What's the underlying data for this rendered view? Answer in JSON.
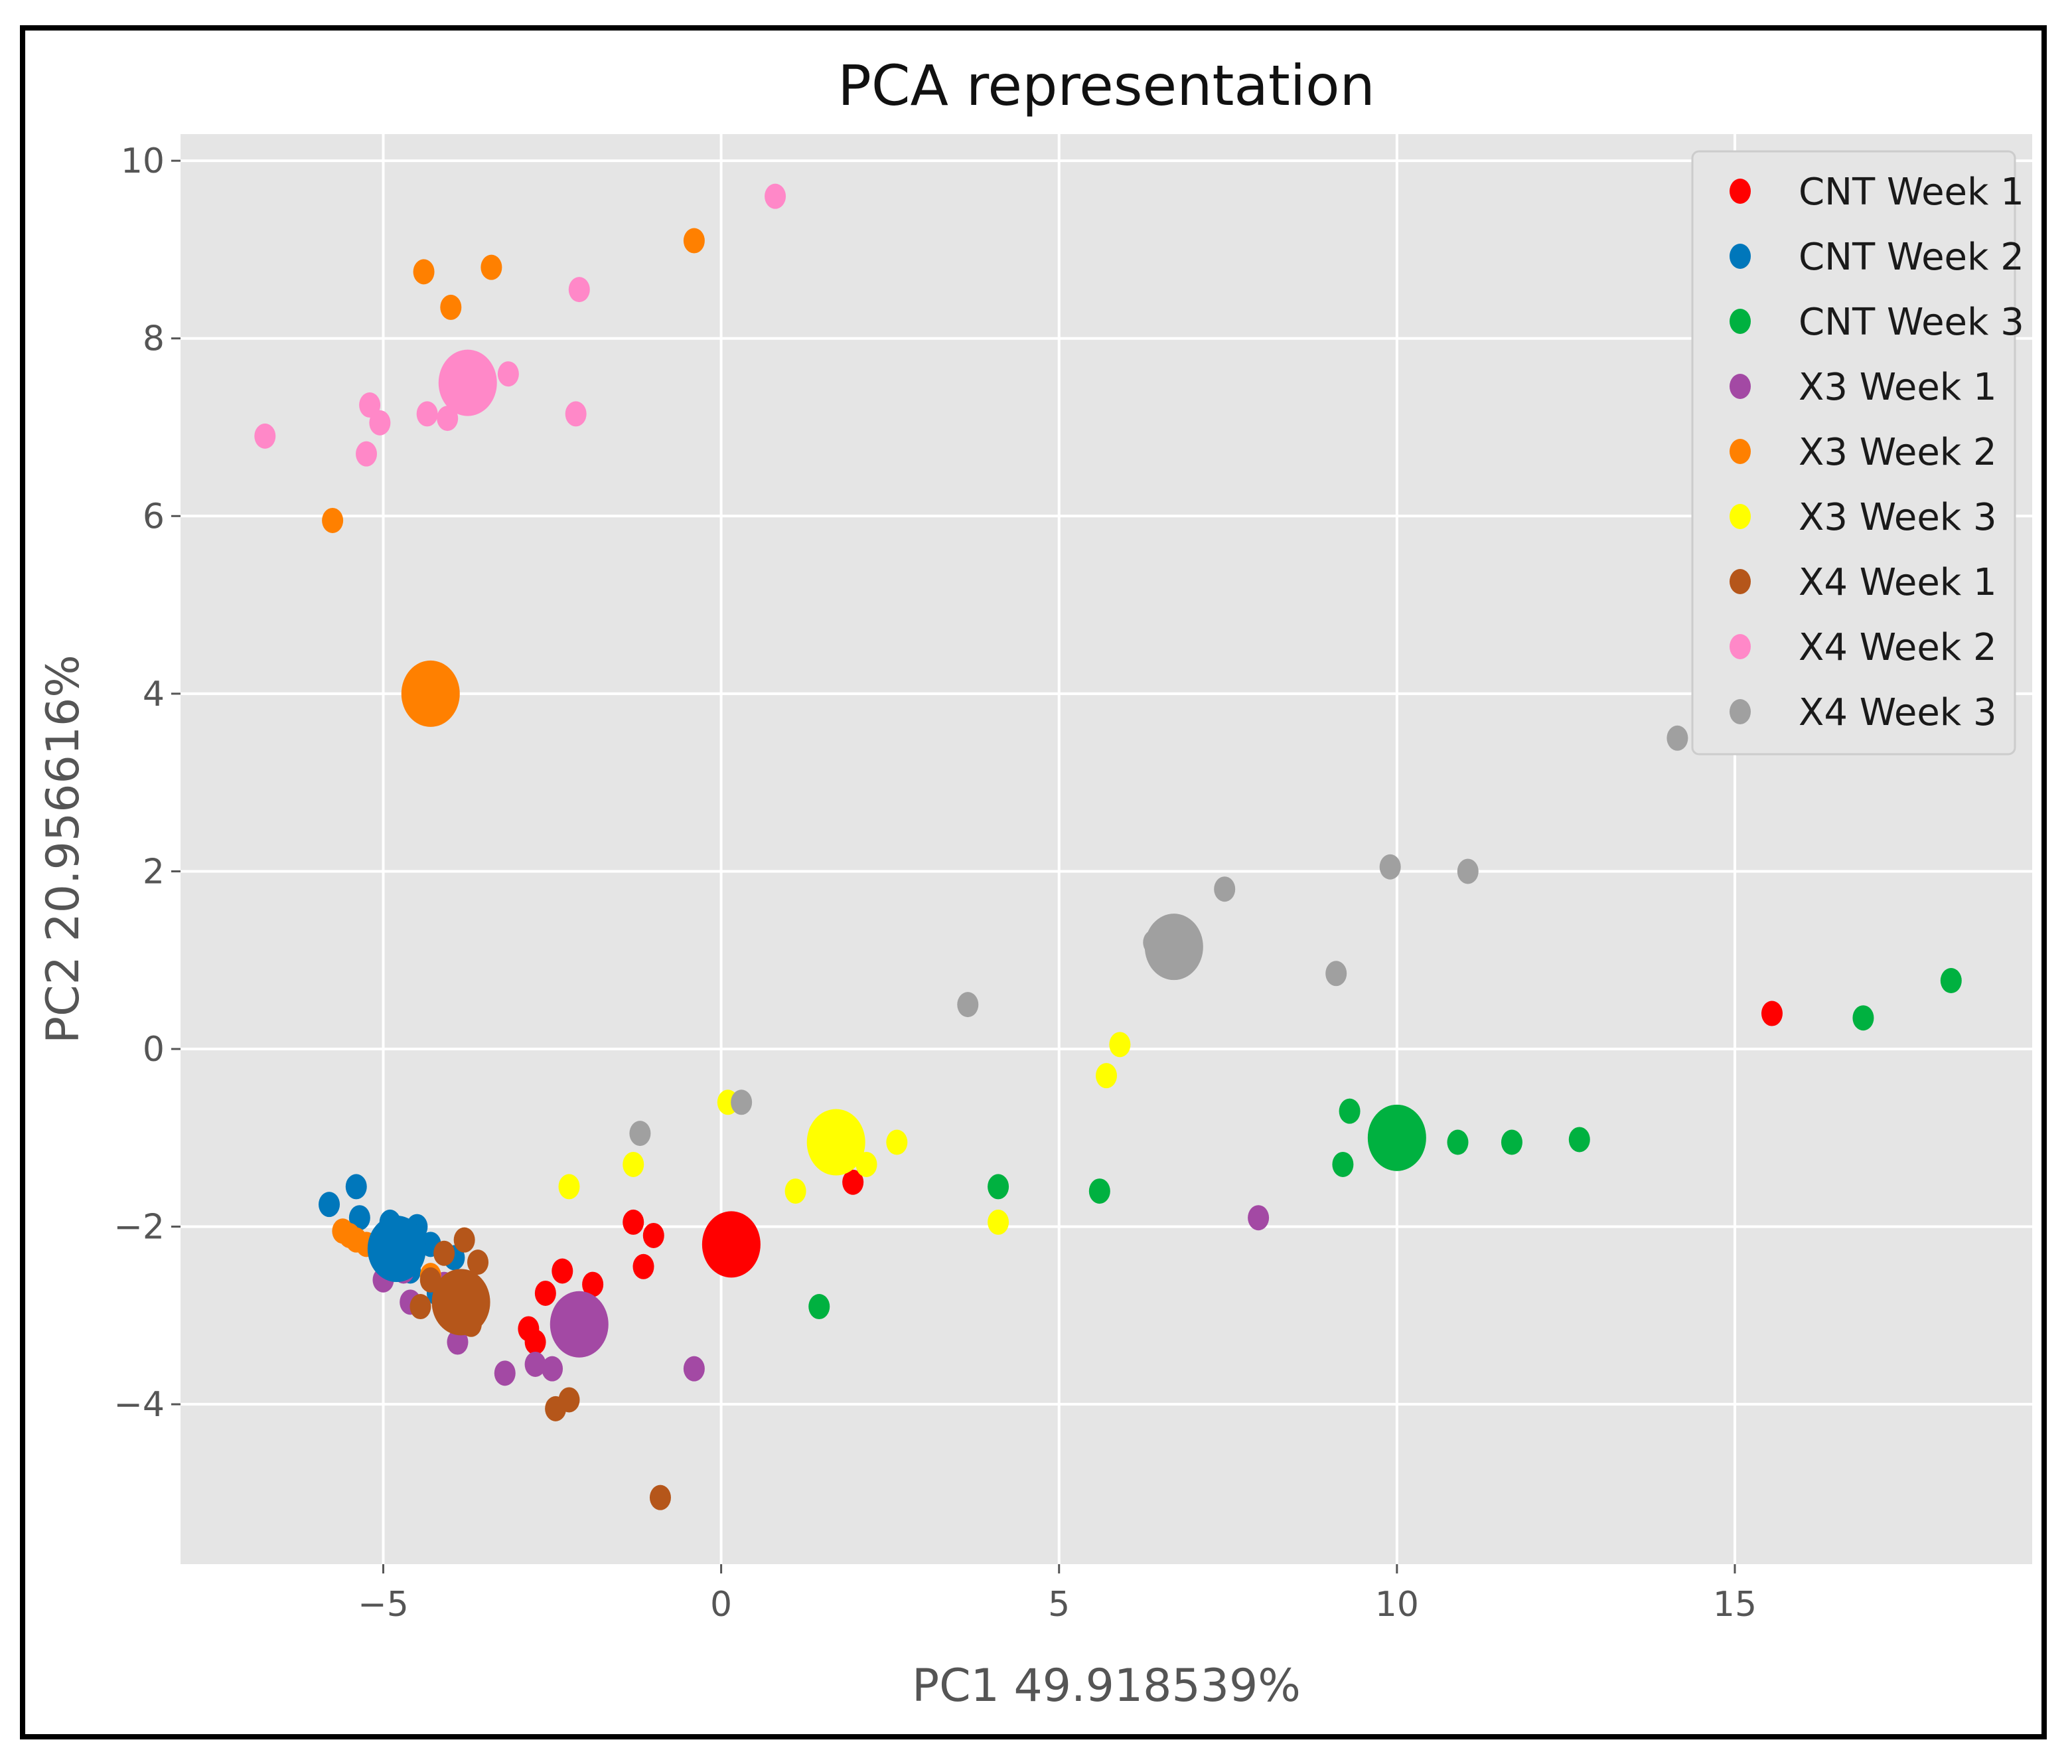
{
  "chart_data": {
    "type": "scatter",
    "title": "PCA representation",
    "xlabel": "PC1 49.918539%",
    "ylabel": "PC2 20.956616%",
    "xlim": [
      -8,
      19.4
    ],
    "ylim": [
      -5.8,
      10.3
    ],
    "xticks": [
      -5,
      0,
      5,
      10,
      15
    ],
    "yticks": [
      -4,
      -2,
      0,
      2,
      4,
      6,
      8,
      10
    ],
    "xtick_labels": [
      "−5",
      "0",
      "5",
      "10",
      "15"
    ],
    "ytick_labels": [
      "−4",
      "−2",
      "0",
      "2",
      "4",
      "6",
      "8",
      "10"
    ],
    "legend_position": "top-right",
    "series": [
      {
        "name": "CNT Week 1",
        "color": "#ff0000",
        "points": [
          [
            -1.3,
            -1.95
          ],
          [
            -1.0,
            -2.1
          ],
          [
            -1.15,
            -2.45
          ],
          [
            -2.35,
            -2.5
          ],
          [
            -2.6,
            -2.75
          ],
          [
            -1.9,
            -2.65
          ],
          [
            -2.85,
            -3.15
          ],
          [
            -2.75,
            -3.3
          ],
          [
            1.95,
            -1.5
          ],
          [
            15.55,
            0.4
          ]
        ],
        "centroid": [
          0.15,
          -2.2
        ]
      },
      {
        "name": "CNT Week 2",
        "color": "#0077bb",
        "points": [
          [
            -5.8,
            -1.75
          ],
          [
            -5.4,
            -1.55
          ],
          [
            -5.35,
            -1.9
          ],
          [
            -4.9,
            -1.95
          ],
          [
            -4.5,
            -2.0
          ],
          [
            -4.3,
            -2.2
          ],
          [
            -4.6,
            -2.5
          ],
          [
            -4.2,
            -2.75
          ],
          [
            -3.95,
            -2.35
          ],
          [
            -4.95,
            -2.35
          ]
        ],
        "centroid": [
          -4.8,
          -2.25
        ]
      },
      {
        "name": "CNT Week 3",
        "color": "#00b140",
        "points": [
          [
            4.1,
            -1.55
          ],
          [
            5.6,
            -1.6
          ],
          [
            1.45,
            -2.9
          ],
          [
            9.3,
            -0.7
          ],
          [
            9.2,
            -1.3
          ],
          [
            10.9,
            -1.05
          ],
          [
            11.7,
            -1.05
          ],
          [
            12.7,
            -1.02
          ],
          [
            16.9,
            0.35
          ],
          [
            18.2,
            0.77
          ]
        ],
        "centroid": [
          10.0,
          -1.0
        ]
      },
      {
        "name": "X3 Week 1",
        "color": "#a349a4",
        "points": [
          [
            -5.0,
            -2.6
          ],
          [
            -4.6,
            -2.85
          ],
          [
            -3.9,
            -3.3
          ],
          [
            -3.2,
            -3.65
          ],
          [
            -2.75,
            -3.55
          ],
          [
            -2.5,
            -3.6
          ],
          [
            -0.4,
            -3.6
          ],
          [
            7.95,
            -1.9
          ],
          [
            -4.7,
            -2.5
          ],
          [
            -4.1,
            -2.65
          ]
        ],
        "centroid": [
          -2.1,
          -3.1
        ]
      },
      {
        "name": "X3 Week 2",
        "color": "#ff8000",
        "points": [
          [
            -4.4,
            8.75
          ],
          [
            -3.4,
            8.8
          ],
          [
            -4.0,
            8.35
          ],
          [
            -0.4,
            9.1
          ],
          [
            -5.75,
            5.95
          ],
          [
            -5.6,
            -2.05
          ],
          [
            -5.4,
            -2.15
          ],
          [
            -5.25,
            -2.2
          ],
          [
            -4.3,
            -2.55
          ],
          [
            -5.5,
            -2.1
          ]
        ],
        "centroid": [
          -4.3,
          4.0
        ]
      },
      {
        "name": "X3 Week 3",
        "color": "#ffff00",
        "points": [
          [
            0.1,
            -0.6
          ],
          [
            -2.25,
            -1.55
          ],
          [
            -1.3,
            -1.3
          ],
          [
            1.1,
            -1.6
          ],
          [
            2.15,
            -1.3
          ],
          [
            2.6,
            -1.05
          ],
          [
            4.1,
            -1.95
          ],
          [
            5.7,
            -0.3
          ],
          [
            5.9,
            0.05
          ],
          [
            1.45,
            -0.95
          ]
        ],
        "centroid": [
          1.7,
          -1.05
        ]
      },
      {
        "name": "X4 Week 1",
        "color": "#b5561a",
        "points": [
          [
            -3.8,
            -2.15
          ],
          [
            -4.3,
            -2.6
          ],
          [
            -2.45,
            -4.05
          ],
          [
            -2.25,
            -3.95
          ],
          [
            -0.9,
            -5.05
          ],
          [
            -4.0,
            -2.75
          ],
          [
            -3.6,
            -2.4
          ],
          [
            -4.45,
            -2.9
          ],
          [
            -3.7,
            -3.1
          ],
          [
            -4.1,
            -2.3
          ]
        ],
        "centroid": [
          -3.85,
          -2.85
        ]
      },
      {
        "name": "X4 Week 2",
        "color": "#ff88c8",
        "points": [
          [
            -6.75,
            6.9
          ],
          [
            -5.2,
            7.25
          ],
          [
            -5.05,
            7.05
          ],
          [
            -5.25,
            6.7
          ],
          [
            -4.35,
            7.15
          ],
          [
            -4.05,
            7.1
          ],
          [
            -3.15,
            7.6
          ],
          [
            -2.1,
            8.55
          ],
          [
            -2.15,
            7.15
          ],
          [
            0.8,
            9.6
          ]
        ],
        "centroid": [
          -3.75,
          7.5
        ]
      },
      {
        "name": "X4 Week 3",
        "color": "#a0a0a0",
        "points": [
          [
            14.15,
            3.5
          ],
          [
            9.9,
            2.05
          ],
          [
            11.05,
            2.0
          ],
          [
            7.45,
            1.8
          ],
          [
            6.4,
            1.2
          ],
          [
            9.1,
            0.85
          ],
          [
            3.65,
            0.5
          ],
          [
            -1.2,
            -0.95
          ],
          [
            0.3,
            -0.6
          ],
          [
            6.9,
            1.0
          ]
        ],
        "centroid": [
          6.7,
          1.15
        ]
      }
    ]
  }
}
